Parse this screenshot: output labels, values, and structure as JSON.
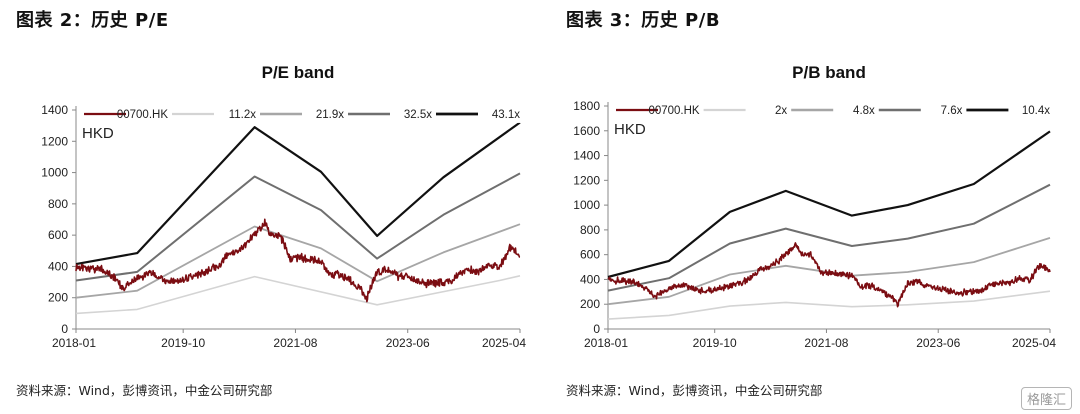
{
  "panels": [
    {
      "fig_title": "图表 2：历史 P/E",
      "source": "资料来源：Wind，彭博资讯，中金公司研究部",
      "chart_data": {
        "type": "line",
        "title": "P/E band",
        "unit_label": "HKD",
        "ylim": [
          0,
          1400
        ],
        "yticks": [
          0,
          200,
          400,
          600,
          800,
          1000,
          1200,
          1400
        ],
        "xlim": [
          "2018-01",
          "2025-04"
        ],
        "xticks": [
          "2018-01",
          "2019-10",
          "2021-08",
          "2023-06",
          "2025-04"
        ],
        "legend_position": "top",
        "series": [
          {
            "name": "00700.HK",
            "color": "#7b0d12",
            "width": 1.6,
            "points": [
              [
                "2018-01",
                400
              ],
              [
                "2018-03",
                390
              ],
              [
                "2018-06",
                380
              ],
              [
                "2018-09",
                310
              ],
              [
                "2018-10",
                255
              ],
              [
                "2018-12",
                300
              ],
              [
                "2019-02",
                335
              ],
              [
                "2019-04",
                355
              ],
              [
                "2019-06",
                315
              ],
              [
                "2019-08",
                305
              ],
              [
                "2019-10",
                320
              ],
              [
                "2019-12",
                335
              ],
              [
                "2020-03",
                370
              ],
              [
                "2020-05",
                410
              ],
              [
                "2020-07",
                480
              ],
              [
                "2020-09",
                500
              ],
              [
                "2020-11",
                565
              ],
              [
                "2021-01",
                640
              ],
              [
                "2021-02",
                690
              ],
              [
                "2021-03",
                605
              ],
              [
                "2021-05",
                600
              ],
              [
                "2021-07",
                450
              ],
              [
                "2021-09",
                460
              ],
              [
                "2021-11",
                440
              ],
              [
                "2022-01",
                430
              ],
              [
                "2022-03",
                340
              ],
              [
                "2022-05",
                350
              ],
              [
                "2022-07",
                300
              ],
              [
                "2022-09",
                250
              ],
              [
                "2022-10",
                200
              ],
              [
                "2022-12",
                370
              ],
              [
                "2023-02",
                380
              ],
              [
                "2023-04",
                340
              ],
              [
                "2023-06",
                330
              ],
              [
                "2023-08",
                310
              ],
              [
                "2023-10",
                290
              ],
              [
                "2023-12",
                300
              ],
              [
                "2024-02",
                300
              ],
              [
                "2024-04",
                350
              ],
              [
                "2024-06",
                380
              ],
              [
                "2024-08",
                370
              ],
              [
                "2024-10",
                420
              ],
              [
                "2024-12",
                390
              ],
              [
                "2025-02",
                520
              ],
              [
                "2025-03",
                500
              ],
              [
                "2025-04",
                460
              ]
            ]
          },
          {
            "name": "11.2x",
            "color": "#d4d4d4",
            "width": 1.6,
            "points": [
              [
                "2018-01",
                100
              ],
              [
                "2019-01",
                125
              ],
              [
                "2020-12",
                335
              ],
              [
                "2022-12",
                155
              ],
              [
                "2024-12",
                310
              ],
              [
                "2025-04",
                340
              ]
            ]
          },
          {
            "name": "21.9x",
            "color": "#a6a6a6",
            "width": 1.8,
            "points": [
              [
                "2018-01",
                200
              ],
              [
                "2019-01",
                245
              ],
              [
                "2020-12",
                655
              ],
              [
                "2022-01",
                515
              ],
              [
                "2022-12",
                305
              ],
              [
                "2024-01",
                490
              ],
              [
                "2025-04",
                670
              ]
            ]
          },
          {
            "name": "32.5x",
            "color": "#6f6f6f",
            "width": 2,
            "points": [
              [
                "2018-01",
                310
              ],
              [
                "2019-01",
                365
              ],
              [
                "2020-12",
                975
              ],
              [
                "2022-01",
                760
              ],
              [
                "2022-12",
                450
              ],
              [
                "2024-01",
                730
              ],
              [
                "2025-04",
                995
              ]
            ]
          },
          {
            "name": "43.1x",
            "color": "#111111",
            "width": 2.2,
            "points": [
              [
                "2018-01",
                415
              ],
              [
                "2019-01",
                485
              ],
              [
                "2020-12",
                1290
              ],
              [
                "2022-01",
                1005
              ],
              [
                "2022-12",
                595
              ],
              [
                "2024-01",
                970
              ],
              [
                "2025-04",
                1320
              ]
            ]
          }
        ]
      }
    },
    {
      "fig_title": "图表 3：历史 P/B",
      "source": "资料来源：Wind，彭博资讯，中金公司研究部",
      "chart_data": {
        "type": "line",
        "title": "P/B band",
        "unit_label": "HKD",
        "ylim": [
          0,
          1800
        ],
        "yticks": [
          0,
          200,
          400,
          600,
          800,
          1000,
          1200,
          1400,
          1600,
          1800
        ],
        "xlim": [
          "2018-01",
          "2025-04"
        ],
        "xticks": [
          "2018-01",
          "2019-10",
          "2021-08",
          "2023-06",
          "2025-04"
        ],
        "legend_position": "top",
        "series": [
          {
            "name": "00700.HK",
            "color": "#7b0d12",
            "width": 1.6,
            "points": [
              [
                "2018-01",
                400
              ],
              [
                "2018-03",
                390
              ],
              [
                "2018-06",
                380
              ],
              [
                "2018-09",
                310
              ],
              [
                "2018-10",
                255
              ],
              [
                "2018-12",
                300
              ],
              [
                "2019-02",
                335
              ],
              [
                "2019-04",
                355
              ],
              [
                "2019-06",
                315
              ],
              [
                "2019-08",
                305
              ],
              [
                "2019-10",
                320
              ],
              [
                "2019-12",
                335
              ],
              [
                "2020-03",
                370
              ],
              [
                "2020-05",
                410
              ],
              [
                "2020-07",
                480
              ],
              [
                "2020-09",
                500
              ],
              [
                "2020-11",
                565
              ],
              [
                "2021-01",
                640
              ],
              [
                "2021-02",
                690
              ],
              [
                "2021-03",
                605
              ],
              [
                "2021-05",
                600
              ],
              [
                "2021-07",
                450
              ],
              [
                "2021-09",
                460
              ],
              [
                "2021-11",
                440
              ],
              [
                "2022-01",
                430
              ],
              [
                "2022-03",
                340
              ],
              [
                "2022-05",
                350
              ],
              [
                "2022-07",
                300
              ],
              [
                "2022-09",
                250
              ],
              [
                "2022-10",
                200
              ],
              [
                "2022-12",
                370
              ],
              [
                "2023-02",
                380
              ],
              [
                "2023-04",
                340
              ],
              [
                "2023-06",
                330
              ],
              [
                "2023-08",
                310
              ],
              [
                "2023-10",
                290
              ],
              [
                "2023-12",
                300
              ],
              [
                "2024-02",
                300
              ],
              [
                "2024-04",
                350
              ],
              [
                "2024-06",
                380
              ],
              [
                "2024-08",
                370
              ],
              [
                "2024-10",
                420
              ],
              [
                "2024-12",
                390
              ],
              [
                "2025-02",
                520
              ],
              [
                "2025-03",
                500
              ],
              [
                "2025-04",
                460
              ]
            ]
          },
          {
            "name": "2x",
            "color": "#d4d4d4",
            "width": 1.6,
            "points": [
              [
                "2018-01",
                80
              ],
              [
                "2019-01",
                110
              ],
              [
                "2020-01",
                185
              ],
              [
                "2020-12",
                215
              ],
              [
                "2022-01",
                180
              ],
              [
                "2022-12",
                195
              ],
              [
                "2024-01",
                225
              ],
              [
                "2025-04",
                305
              ]
            ]
          },
          {
            "name": "4.8x",
            "color": "#a6a6a6",
            "width": 1.8,
            "points": [
              [
                "2018-01",
                200
              ],
              [
                "2019-01",
                260
              ],
              [
                "2020-01",
                440
              ],
              [
                "2020-12",
                510
              ],
              [
                "2022-01",
                430
              ],
              [
                "2022-12",
                460
              ],
              [
                "2024-01",
                540
              ],
              [
                "2025-04",
                735
              ]
            ]
          },
          {
            "name": "7.6x",
            "color": "#6f6f6f",
            "width": 2,
            "points": [
              [
                "2018-01",
                310
              ],
              [
                "2019-01",
                410
              ],
              [
                "2020-01",
                690
              ],
              [
                "2020-12",
                810
              ],
              [
                "2022-01",
                670
              ],
              [
                "2022-12",
                730
              ],
              [
                "2024-01",
                850
              ],
              [
                "2025-04",
                1165
              ]
            ]
          },
          {
            "name": "10.4x",
            "color": "#111111",
            "width": 2.2,
            "points": [
              [
                "2018-01",
                420
              ],
              [
                "2019-01",
                550
              ],
              [
                "2020-01",
                945
              ],
              [
                "2020-12",
                1115
              ],
              [
                "2022-01",
                915
              ],
              [
                "2022-12",
                1000
              ],
              [
                "2024-01",
                1170
              ],
              [
                "2025-04",
                1595
              ]
            ]
          }
        ]
      }
    }
  ],
  "watermark": "格隆汇"
}
